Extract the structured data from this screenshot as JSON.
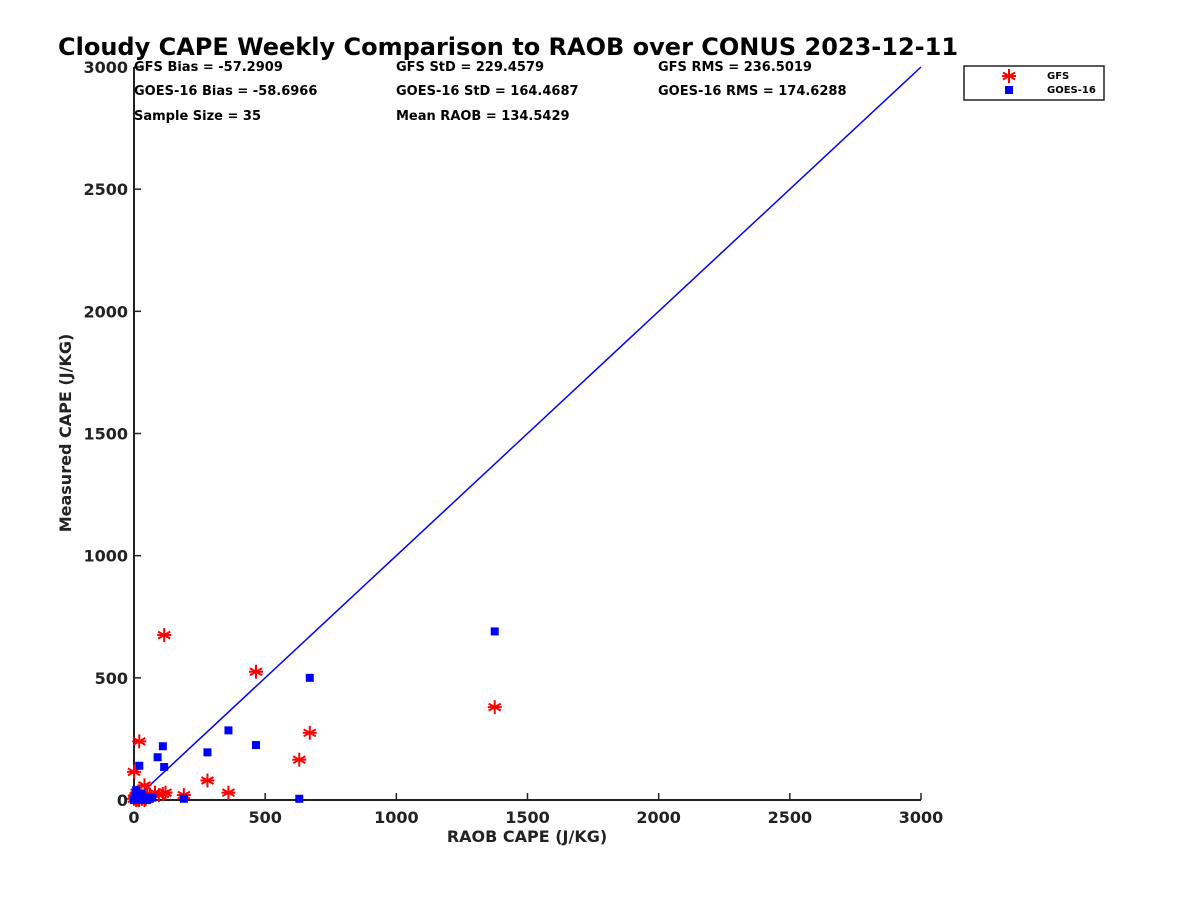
{
  "chart_data": {
    "type": "scatter",
    "title": "Cloudy CAPE Weekly Comparison to RAOB over CONUS 2023-12-11",
    "xlabel": "RAOB CAPE (J/KG)",
    "ylabel": "Measured CAPE (J/KG)",
    "xlim": [
      0,
      3000
    ],
    "ylim": [
      0,
      3000
    ],
    "xticks": [
      "0",
      "500",
      "1000",
      "1500",
      "2000",
      "2500",
      "3000"
    ],
    "yticks": [
      "0",
      "500",
      "1000",
      "1500",
      "2000",
      "2500",
      "3000"
    ],
    "grid": false,
    "legend_position": "top-right",
    "colors": {
      "gfs": "#ff0000",
      "goes": "#0000ff",
      "reference_line": "#0000ff"
    },
    "stats": {
      "gfs_bias": "GFS Bias = -57.2909",
      "goes_bias": "GOES-16 Bias = -58.6966",
      "sample_size": "Sample Size = 35",
      "gfs_std": "GFS StD = 229.4579",
      "goes_std": "GOES-16 StD = 164.4687",
      "mean_raob": "Mean RAOB = 134.5429",
      "gfs_rms": "GFS RMS = 236.5019",
      "goes_rms": "GOES-16 RMS = 174.6288"
    },
    "reference_line": {
      "x": [
        0,
        3000
      ],
      "y": [
        0,
        3000
      ]
    },
    "series": [
      {
        "name": "GFS",
        "marker": "asterisk",
        "points": [
          [
            0,
            5
          ],
          [
            5,
            10
          ],
          [
            8,
            0
          ],
          [
            10,
            30
          ],
          [
            15,
            2
          ],
          [
            20,
            0
          ],
          [
            25,
            15
          ],
          [
            30,
            5
          ],
          [
            35,
            10
          ],
          [
            40,
            0
          ],
          [
            45,
            5
          ],
          [
            50,
            20
          ],
          [
            0,
            115
          ],
          [
            20,
            240
          ],
          [
            40,
            60
          ],
          [
            60,
            20
          ],
          [
            80,
            30
          ],
          [
            95,
            20
          ],
          [
            110,
            25
          ],
          [
            120,
            30
          ],
          [
            115,
            675
          ],
          [
            190,
            20
          ],
          [
            280,
            80
          ],
          [
            360,
            30
          ],
          [
            465,
            525
          ],
          [
            630,
            165
          ],
          [
            670,
            275
          ],
          [
            1375,
            380
          ]
        ]
      },
      {
        "name": "GOES-16",
        "marker": "square",
        "points": [
          [
            0,
            0
          ],
          [
            5,
            20
          ],
          [
            8,
            40
          ],
          [
            10,
            5
          ],
          [
            15,
            10
          ],
          [
            20,
            140
          ],
          [
            20,
            0
          ],
          [
            25,
            15
          ],
          [
            30,
            25
          ],
          [
            35,
            5
          ],
          [
            40,
            10
          ],
          [
            50,
            0
          ],
          [
            60,
            5
          ],
          [
            70,
            10
          ],
          [
            90,
            175
          ],
          [
            110,
            220
          ],
          [
            115,
            135
          ],
          [
            190,
            5
          ],
          [
            280,
            195
          ],
          [
            360,
            285
          ],
          [
            465,
            225
          ],
          [
            630,
            5
          ],
          [
            670,
            500
          ],
          [
            1375,
            690
          ]
        ]
      }
    ]
  }
}
